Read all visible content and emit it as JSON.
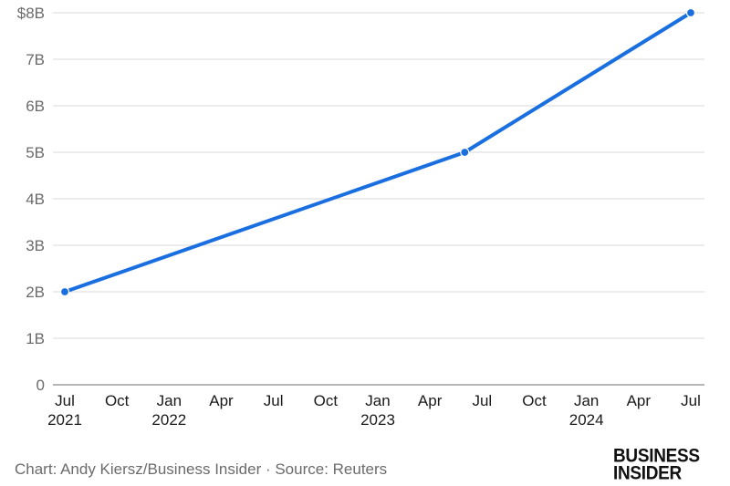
{
  "chart_data": {
    "type": "line",
    "y_tick_labels": [
      "0",
      "1B",
      "2B",
      "3B",
      "4B",
      "5B",
      "6B",
      "7B",
      "$8B"
    ],
    "y_ticks": [
      0,
      1,
      2,
      3,
      4,
      5,
      6,
      7,
      8
    ],
    "ylim": [
      0,
      8
    ],
    "x_range": [
      "2021-07",
      "2024-07"
    ],
    "x_ticks": [
      {
        "date": "2021-07",
        "label": "Jul",
        "year": "2021"
      },
      {
        "date": "2021-10",
        "label": "Oct",
        "year": ""
      },
      {
        "date": "2022-01",
        "label": "Jan",
        "year": "2022"
      },
      {
        "date": "2022-04",
        "label": "Apr",
        "year": ""
      },
      {
        "date": "2022-07",
        "label": "Jul",
        "year": ""
      },
      {
        "date": "2022-10",
        "label": "Oct",
        "year": ""
      },
      {
        "date": "2023-01",
        "label": "Jan",
        "year": "2023"
      },
      {
        "date": "2023-04",
        "label": "Apr",
        "year": ""
      },
      {
        "date": "2023-07",
        "label": "Jul",
        "year": ""
      },
      {
        "date": "2023-10",
        "label": "Oct",
        "year": ""
      },
      {
        "date": "2024-01",
        "label": "Jan",
        "year": "2024"
      },
      {
        "date": "2024-04",
        "label": "Apr",
        "year": ""
      },
      {
        "date": "2024-07",
        "label": "Jul",
        "year": ""
      }
    ],
    "series": [
      {
        "color": "#1a6fe0",
        "points": [
          {
            "x": "2021-07",
            "y": 2
          },
          {
            "x": "2023-06",
            "y": 5
          },
          {
            "x": "2024-07",
            "y": 8
          }
        ]
      }
    ],
    "grid": true
  },
  "footer": {
    "credit": "Chart: Andy Kiersz/Business Insider · Source: Reuters"
  },
  "logo": {
    "line1": "BUSINESS",
    "line2": "INSIDER"
  }
}
